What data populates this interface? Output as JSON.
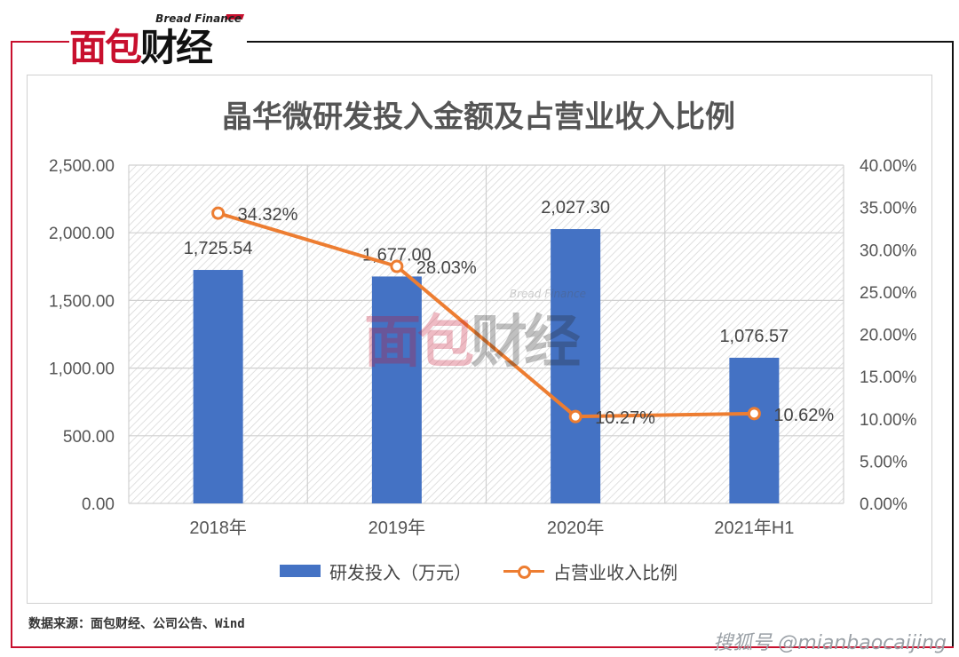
{
  "brand": {
    "logo_en": "Bread Finance",
    "logo_cn_a": "面包",
    "logo_cn_b": "财经",
    "accent": "#c8102e"
  },
  "footer": {
    "source": "数据来源：面包财经、公司公告、Wind",
    "watermark": "搜狐号 @mianbaocaijing"
  },
  "chart_data": {
    "type": "bar",
    "title": "晶华微研发投入金额及占营业收入比例",
    "categories": [
      "2018年",
      "2019年",
      "2020年",
      "2021年H1"
    ],
    "series": [
      {
        "name": "研发投入（万元）",
        "type": "bar",
        "axis": "left",
        "color": "#4472c4",
        "values": [
          1725.54,
          1677.0,
          2027.3,
          1076.57
        ],
        "labels": [
          "1,725.54",
          "1,677.00",
          "2,027.30",
          "1,076.57"
        ]
      },
      {
        "name": "占营业收入比例",
        "type": "line",
        "axis": "right",
        "color": "#ed7d31",
        "values": [
          34.32,
          28.03,
          10.27,
          10.62
        ],
        "labels": [
          "34.32%",
          "28.03%",
          "10.27%",
          "10.62%"
        ]
      }
    ],
    "y_left": {
      "ylim": [
        0,
        2500
      ],
      "ticks": [
        "0.00",
        "500.00",
        "1,000.00",
        "1,500.00",
        "2,000.00",
        "2,500.00"
      ]
    },
    "y_right": {
      "ylim": [
        0,
        40
      ],
      "ticks": [
        "0.00%",
        "5.00%",
        "10.00%",
        "15.00%",
        "20.00%",
        "25.00%",
        "30.00%",
        "35.00%",
        "40.00%"
      ]
    },
    "grid": true,
    "legend": "bottom"
  }
}
